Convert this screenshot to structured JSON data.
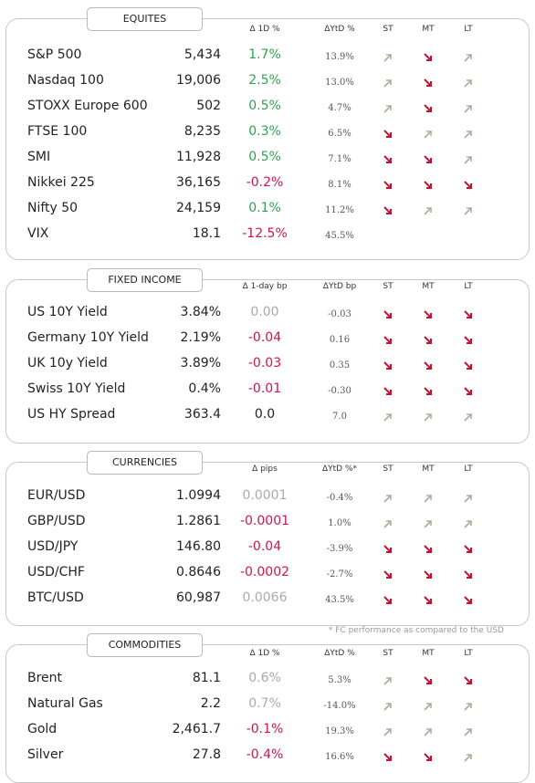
{
  "sections": [
    {
      "title": "EQUITES",
      "headers": [
        "Δ 1D %",
        "ΔYtD %",
        "ST",
        "MT",
        "LT"
      ],
      "rows": [
        {
          "name": "S&P 500",
          "value": "5,434",
          "change": "1.7%",
          "change_color": "#2ea34f",
          "ytd": "13.9%",
          "st": "up",
          "mt": "down",
          "lt": "up"
        },
        {
          "name": "Nasdaq 100",
          "value": "19,006",
          "change": "2.5%",
          "change_color": "#2ea34f",
          "ytd": "13.0%",
          "st": "up",
          "mt": "down",
          "lt": "up"
        },
        {
          "name": "STOXX Europe 600",
          "value": "502",
          "change": "0.5%",
          "change_color": "#2ea34f",
          "ytd": "4.7%",
          "st": "up",
          "mt": "down",
          "lt": "up"
        },
        {
          "name": "FTSE 100",
          "value": "8,235",
          "change": "0.3%",
          "change_color": "#2ea34f",
          "ytd": "6.5%",
          "st": "down",
          "mt": "up",
          "lt": "up"
        },
        {
          "name": "SMI",
          "value": "11,928",
          "change": "0.5%",
          "change_color": "#2ea34f",
          "ytd": "7.1%",
          "st": "down",
          "mt": "down",
          "lt": "up"
        },
        {
          "name": "Nikkei 225",
          "value": "36,165",
          "change": "-0.2%",
          "change_color": "#d3124f",
          "ytd": "8.1%",
          "st": "down",
          "mt": "down",
          "lt": "down"
        },
        {
          "name": "Nifty 50",
          "value": "24,159",
          "change": "0.1%",
          "change_color": "#2ea34f",
          "ytd": "11.2%",
          "st": "down",
          "mt": "up",
          "lt": "up"
        },
        {
          "name": "VIX",
          "value": "18.1",
          "change": "-12.5%",
          "change_color": "#d3124f",
          "ytd": "45.5%"
        }
      ]
    },
    {
      "title": "FIXED INCOME",
      "headers": [
        "Δ 1-day bp",
        "ΔYtD bp",
        "ST",
        "MT",
        "LT"
      ],
      "rows": [
        {
          "name": "US 10Y Yield",
          "value": "3.84%",
          "change": "0.00",
          "change_color": "#aaaaaa",
          "ytd": "-0.03",
          "st": "down",
          "mt": "down",
          "lt": "down"
        },
        {
          "name": "Germany 10Y Yield",
          "value": "2.19%",
          "change": "-0.04",
          "change_color": "#d3124f",
          "ytd": "0.16",
          "st": "down",
          "mt": "down",
          "lt": "down"
        },
        {
          "name": "UK 10y Yield",
          "value": "3.89%",
          "change": "-0.03",
          "change_color": "#d3124f",
          "ytd": "0.35",
          "st": "down",
          "mt": "down",
          "lt": "down"
        },
        {
          "name": "Swiss 10Y Yield",
          "value": "0.4%",
          "change": "-0.01",
          "change_color": "#d3124f",
          "ytd": "-0.30",
          "st": "down",
          "mt": "down",
          "lt": "down"
        },
        {
          "name": "US HY Spread",
          "value": "363.4",
          "change": "0.0",
          "change_color": "#222222",
          "ytd": "7.0",
          "st": "up",
          "mt": "up",
          "lt": "up"
        }
      ]
    },
    {
      "title": "CURRENCIES",
      "headers": [
        "Δ pips",
        "ΔYtD %*",
        "ST",
        "MT",
        "LT"
      ],
      "rows": [
        {
          "name": "EUR/USD",
          "value": "1.0994",
          "change": "0.0001",
          "change_color": "#aaaaaa",
          "ytd": "-0.4%",
          "st": "up",
          "mt": "up",
          "lt": "up"
        },
        {
          "name": "GBP/USD",
          "value": "1.2861",
          "change": "-0.0001",
          "change_color": "#d3124f",
          "ytd": "1.0%",
          "st": "up",
          "mt": "up",
          "lt": "up"
        },
        {
          "name": "USD/JPY",
          "value": "146.80",
          "change": "-0.04",
          "change_color": "#d3124f",
          "ytd": "-3.9%",
          "st": "down",
          "mt": "down",
          "lt": "down"
        },
        {
          "name": "USD/CHF",
          "value": "0.8646",
          "change": "-0.0002",
          "change_color": "#d3124f",
          "ytd": "-2.7%",
          "st": "down",
          "mt": "down",
          "lt": "down"
        },
        {
          "name": "BTC/USD",
          "value": "60,987",
          "change": "0.0066",
          "change_color": "#aaaaaa",
          "ytd": "43.5%",
          "st": "down",
          "mt": "down",
          "lt": "down"
        }
      ]
    },
    {
      "title": "COMMODITIES",
      "headers": [
        "Δ 1D %",
        "ΔYtD %",
        "ST",
        "MT",
        "LT"
      ],
      "rows": [
        {
          "name": "Brent",
          "value": "81.1",
          "change": "0.6%",
          "change_color": "#aaaaaa",
          "ytd": "5.3%",
          "st": "up",
          "mt": "down",
          "lt": "down"
        },
        {
          "name": "Natural Gas",
          "value": "2.2",
          "change": "0.7%",
          "change_color": "#aaaaaa",
          "ytd": "-14.0%",
          "st": "up",
          "mt": "up",
          "lt": "up"
        },
        {
          "name": "Gold",
          "value": "2,461.7",
          "change": "-0.1%",
          "change_color": "#d3124f",
          "ytd": "19.3%",
          "st": "up",
          "mt": "up",
          "lt": "up"
        },
        {
          "name": "Silver",
          "value": "27.8",
          "change": "-0.4%",
          "change_color": "#d3124f",
          "ytd": "16.6%",
          "st": "down",
          "mt": "down",
          "lt": "up"
        }
      ]
    }
  ],
  "footnote": "* FC performance as compared to the USD"
}
